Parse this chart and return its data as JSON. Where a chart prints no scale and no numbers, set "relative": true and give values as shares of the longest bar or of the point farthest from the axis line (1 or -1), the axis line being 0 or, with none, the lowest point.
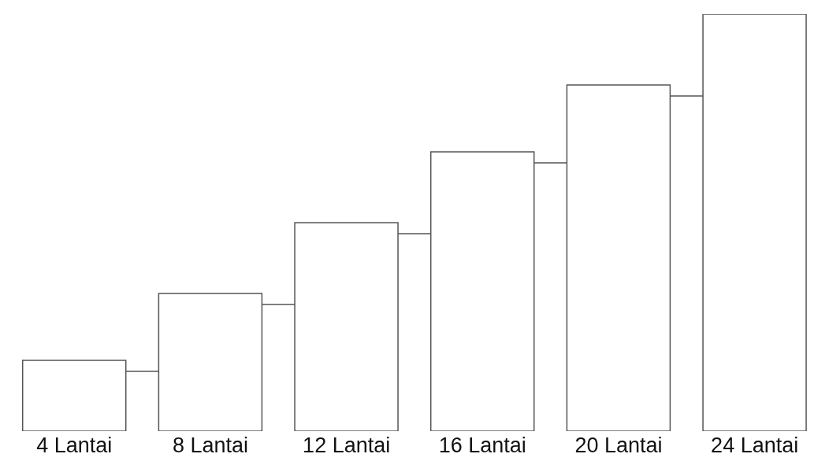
{
  "chart_data": {
    "type": "bar",
    "relative": true,
    "categories": [
      "4 Lantai",
      "8 Lantai",
      "12 Lantai",
      "16 Lantai",
      "20 Lantai",
      "24 Lantai"
    ],
    "values": [
      0.17,
      0.33,
      0.5,
      0.67,
      0.83,
      1
    ],
    "color": "#ffffff"
  }
}
